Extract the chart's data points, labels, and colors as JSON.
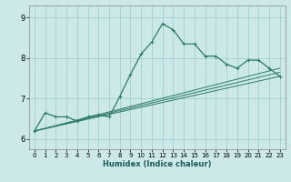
{
  "xlabel": "Humidex (Indice chaleur)",
  "background_color": "#cce8e8",
  "grid_color": "#99cccc",
  "line_color": "#2a7a6a",
  "xlim": [
    -0.5,
    23.5
  ],
  "ylim": [
    5.75,
    9.3
  ],
  "xticks": [
    0,
    1,
    2,
    3,
    4,
    5,
    6,
    7,
    8,
    9,
    10,
    11,
    12,
    13,
    14,
    15,
    16,
    17,
    18,
    19,
    20,
    21,
    22,
    23
  ],
  "yticks": [
    6,
    7,
    8,
    9
  ],
  "main_y": [
    6.2,
    6.65,
    6.55,
    6.55,
    6.45,
    6.55,
    6.6,
    6.55,
    7.05,
    7.6,
    8.1,
    8.4,
    8.85,
    8.7,
    8.35,
    8.35,
    8.05,
    8.05,
    7.85,
    7.75,
    7.95,
    7.95,
    7.75,
    7.55
  ],
  "ref_lines": [
    {
      "x0": 0,
      "y0": 6.2,
      "x1": 23,
      "y1": 7.55
    },
    {
      "x0": 0,
      "y0": 6.2,
      "x1": 23,
      "y1": 7.65
    },
    {
      "x0": 0,
      "y0": 6.2,
      "x1": 23,
      "y1": 7.75
    }
  ],
  "xlabel_fontsize": 6.0,
  "xlabel_color": "#1a5a5a",
  "ytick_fontsize": 6,
  "xtick_fontsize": 5
}
